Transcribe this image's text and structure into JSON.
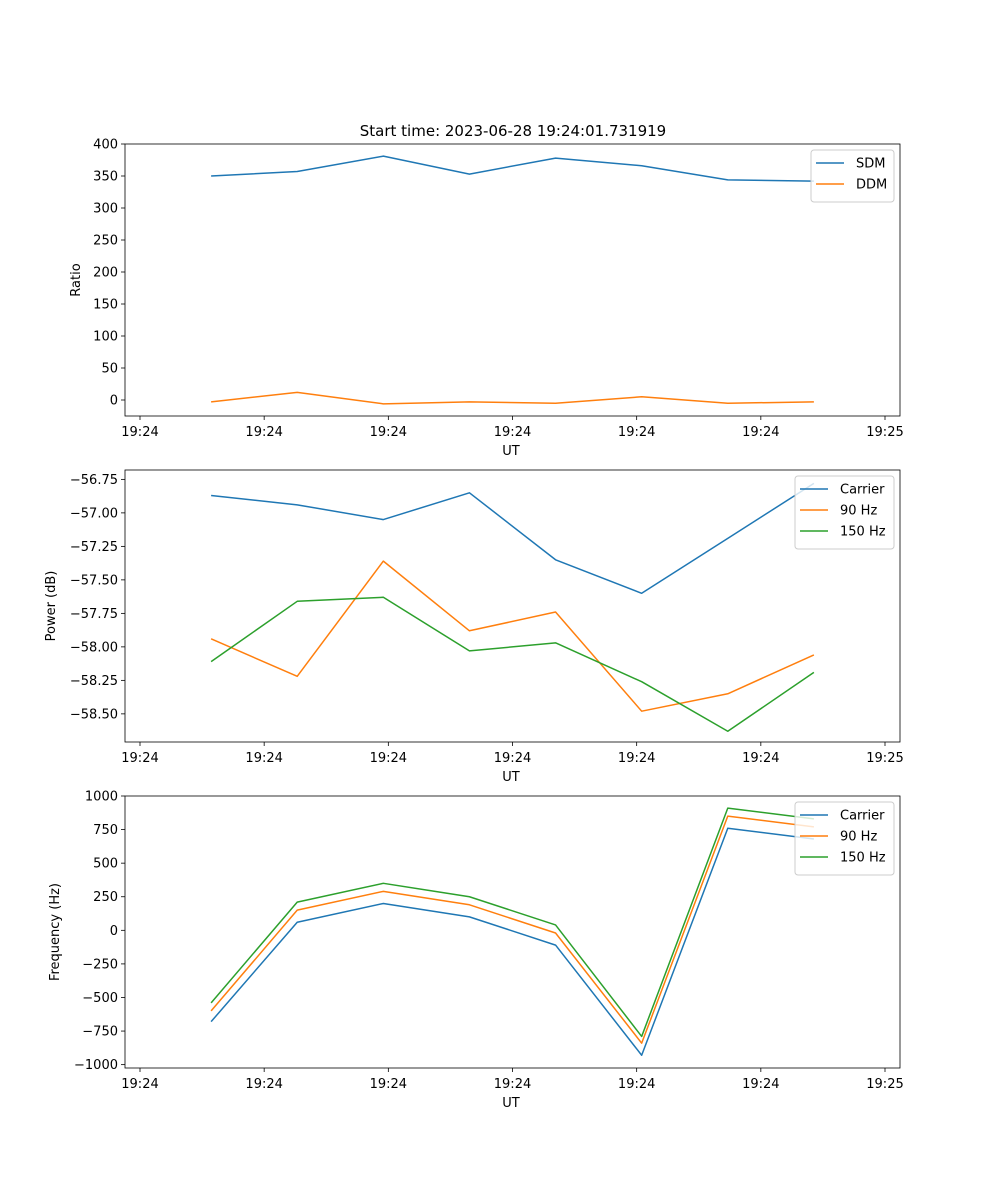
{
  "title": "Start time: 2023-06-28 19:24:01.731919",
  "colors": {
    "blue": "#1f77b4",
    "orange": "#ff7f0e",
    "green": "#2ca02c"
  },
  "chart_data": [
    {
      "type": "line",
      "xlabel": "UT",
      "ylabel": "Ratio",
      "x_tick_labels": [
        "19:24",
        "19:24",
        "19:24",
        "19:24",
        "19:24",
        "19:24",
        "19:25"
      ],
      "xlim": [
        -1,
        17
      ],
      "ylim": [
        -25,
        400
      ],
      "y_ticks": [
        0,
        50,
        100,
        150,
        200,
        250,
        300,
        350,
        400
      ],
      "y_tick_labels": [
        "0",
        "50",
        "100",
        "150",
        "200",
        "250",
        "300",
        "350",
        "400"
      ],
      "x": [
        1,
        3,
        5,
        7,
        9,
        11,
        13,
        15
      ],
      "legend": "top-right",
      "series": [
        {
          "name": "SDM",
          "color": "#1f77b4",
          "values": [
            350,
            357,
            381,
            353,
            378,
            366,
            344,
            342
          ]
        },
        {
          "name": "DDM",
          "color": "#ff7f0e",
          "values": [
            -3,
            12,
            -6,
            -3,
            -5,
            5,
            -5,
            -3
          ]
        }
      ]
    },
    {
      "type": "line",
      "xlabel": "UT",
      "ylabel": "Power (dB)",
      "x_tick_labels": [
        "19:24",
        "19:24",
        "19:24",
        "19:24",
        "19:24",
        "19:24",
        "19:25"
      ],
      "xlim": [
        -1,
        17
      ],
      "ylim": [
        -58.71,
        -56.68
      ],
      "y_ticks": [
        -58.5,
        -58.25,
        -58.0,
        -57.75,
        -57.5,
        -57.25,
        -57.0,
        -56.75
      ],
      "y_tick_labels": [
        "−58.50",
        "−58.25",
        "−58.00",
        "−57.75",
        "−57.50",
        "−57.25",
        "−57.00",
        "−56.75"
      ],
      "x": [
        1,
        3,
        5,
        7,
        9,
        11,
        13,
        15
      ],
      "legend": "top-right",
      "series": [
        {
          "name": "Carrier",
          "color": "#1f77b4",
          "values": [
            -56.87,
            -56.94,
            -57.05,
            -56.85,
            -57.35,
            -57.6,
            -57.19,
            -56.78
          ]
        },
        {
          "name": "90 Hz",
          "color": "#ff7f0e",
          "values": [
            -57.94,
            -58.22,
            -57.36,
            -57.88,
            -57.74,
            -58.48,
            -58.35,
            -58.06
          ]
        },
        {
          "name": "150 Hz",
          "color": "#2ca02c",
          "values": [
            -58.11,
            -57.66,
            -57.63,
            -58.03,
            -57.97,
            -58.26,
            -58.63,
            -58.19
          ]
        }
      ]
    },
    {
      "type": "line",
      "xlabel": "UT",
      "ylabel": "Frequency (Hz)",
      "x_tick_labels": [
        "19:24",
        "19:24",
        "19:24",
        "19:24",
        "19:24",
        "19:24",
        "19:25"
      ],
      "xlim": [
        -1,
        17
      ],
      "ylim": [
        -1025,
        1000
      ],
      "y_ticks": [
        -1000,
        -750,
        -500,
        -250,
        0,
        250,
        500,
        750,
        1000
      ],
      "y_tick_labels": [
        "−1000",
        "−750",
        "−500",
        "−250",
        "0",
        "250",
        "500",
        "750",
        "1000"
      ],
      "x": [
        1,
        3,
        5,
        7,
        9,
        11,
        13,
        15
      ],
      "legend": "top-right",
      "series": [
        {
          "name": "Carrier",
          "color": "#1f77b4",
          "values": [
            -680,
            60,
            200,
            100,
            -110,
            -930,
            760,
            680
          ]
        },
        {
          "name": "90 Hz",
          "color": "#ff7f0e",
          "values": [
            -600,
            150,
            290,
            190,
            -20,
            -840,
            850,
            770
          ]
        },
        {
          "name": "150 Hz",
          "color": "#2ca02c",
          "values": [
            -540,
            210,
            350,
            250,
            40,
            -790,
            910,
            830
          ]
        }
      ]
    }
  ]
}
